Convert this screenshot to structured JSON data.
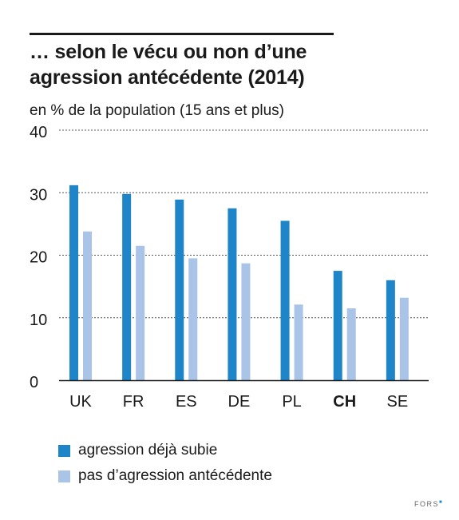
{
  "title_lines": [
    "… selon le vécu ou non d’une",
    "agression antécédente (2014)"
  ],
  "subtitle": "en % de la population (15 ans et plus)",
  "logo": "FORS",
  "colors": {
    "series1": "#1f85c9",
    "series2": "#a9c4e6",
    "grid": "#555555",
    "text": "#1a1a1a"
  },
  "chart_data": {
    "type": "bar",
    "title": "… selon le vécu ou non d’une agression antécédente (2014)",
    "ylabel": "en % de la population (15 ans et plus)",
    "categories": [
      "UK",
      "FR",
      "ES",
      "DE",
      "PL",
      "CH",
      "SE"
    ],
    "highlight_category": "CH",
    "series": [
      {
        "name": "agression déjà subie",
        "values": [
          31.2,
          29.8,
          28.9,
          27.5,
          25.5,
          17.5,
          16.0
        ]
      },
      {
        "name": "pas d’agression antécédente",
        "values": [
          23.8,
          21.5,
          19.5,
          18.7,
          12.1,
          11.5,
          13.2
        ]
      }
    ],
    "ylim": [
      0,
      40
    ],
    "yticks": [
      0,
      10,
      20,
      30,
      40
    ],
    "grid": "dashed horizontal",
    "legend_position": "bottom"
  }
}
